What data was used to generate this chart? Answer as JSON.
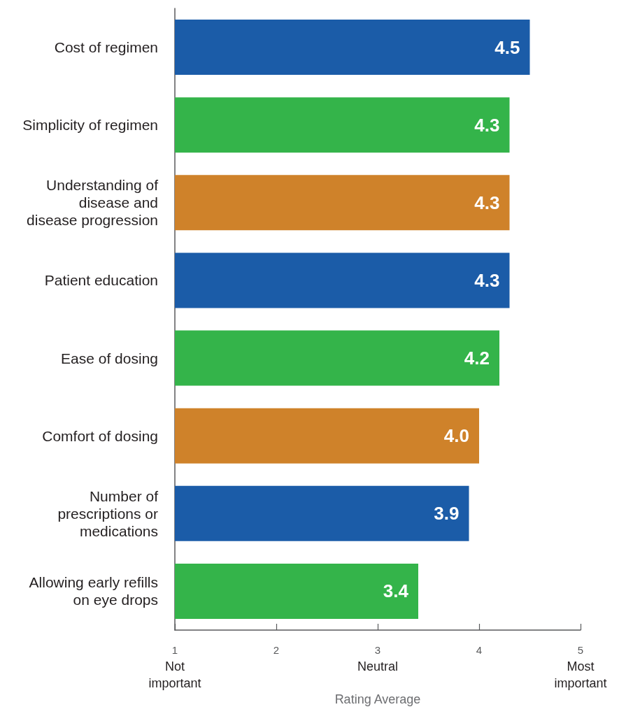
{
  "chart_data": {
    "type": "bar",
    "orientation": "horizontal",
    "categories": [
      "Cost of regimen",
      "Simplicity of regimen",
      "Understanding of\ndisease and\ndisease progression",
      "Patient education",
      "Ease of dosing",
      "Comfort of dosing",
      "Number of\nprescriptions or\nmedications",
      "Allowing early refills\non eye drops"
    ],
    "values": [
      4.5,
      4.3,
      4.3,
      4.3,
      4.2,
      4.0,
      3.9,
      3.4
    ],
    "colors": [
      "#1b5ca8",
      "#34b44a",
      "#cf822a",
      "#1b5ca8",
      "#34b44a",
      "#cf822a",
      "#1b5ca8",
      "#34b44a"
    ],
    "value_labels": [
      "4.5",
      "4.3",
      "4.3",
      "4.3",
      "4.2",
      "4.0",
      "3.9",
      "3.4"
    ],
    "xlabel": "Rating Average",
    "xlim": [
      1,
      5
    ],
    "xticks": [
      {
        "value": 1,
        "label": "1\nNot\nimportant"
      },
      2,
      {
        "value": 3,
        "label": "3\nNeutral"
      },
      4,
      {
        "value": 5,
        "label": "5\nMost\nimportant"
      }
    ]
  }
}
